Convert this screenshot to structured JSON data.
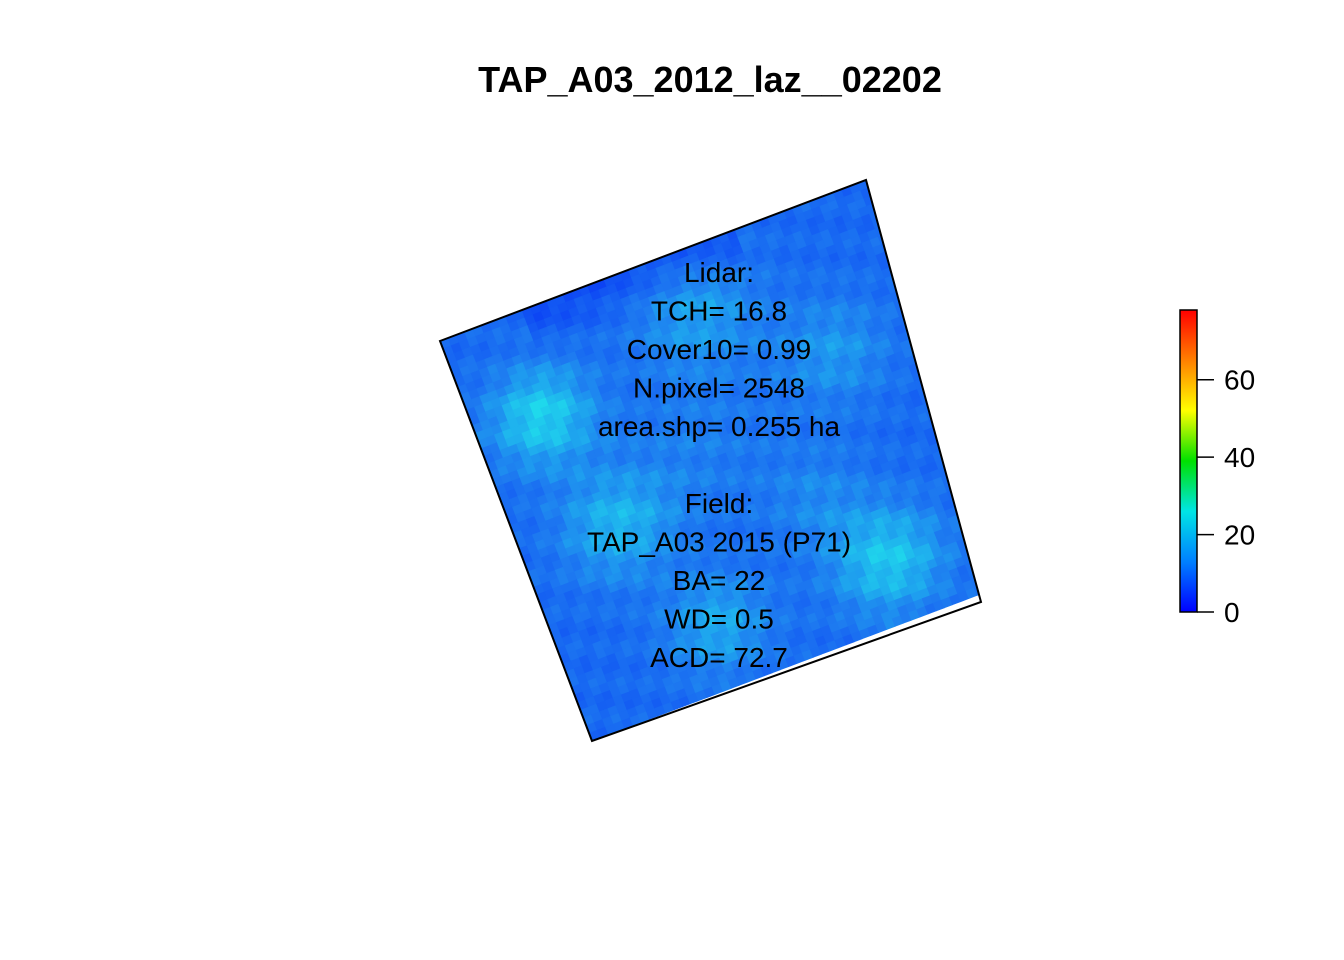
{
  "chart_data": {
    "type": "heatmap",
    "title": "TAP_A03_2012_laz__02202",
    "colorbar": {
      "range": [
        0,
        78
      ],
      "ticks": [
        0,
        20,
        40,
        60
      ],
      "colors": [
        "#0000ff",
        "#0080ff",
        "#00e5e5",
        "#00e000",
        "#ffff00",
        "#ff8000",
        "#ff0000"
      ]
    },
    "annotation_lines": [
      "Lidar:",
      "TCH= 16.8",
      "Cover10= 0.99",
      "N.pixel= 2548",
      "area.shp= 0.255 ha",
      "",
      "Field:",
      "TAP_A03 2015 (P71)",
      "BA= 22",
      "WD= 0.5",
      "ACD= 72.7"
    ],
    "value_colors": {
      "low": "#0a3cf5",
      "mid": "#1e7cf0",
      "high": "#1fd9ec"
    }
  }
}
